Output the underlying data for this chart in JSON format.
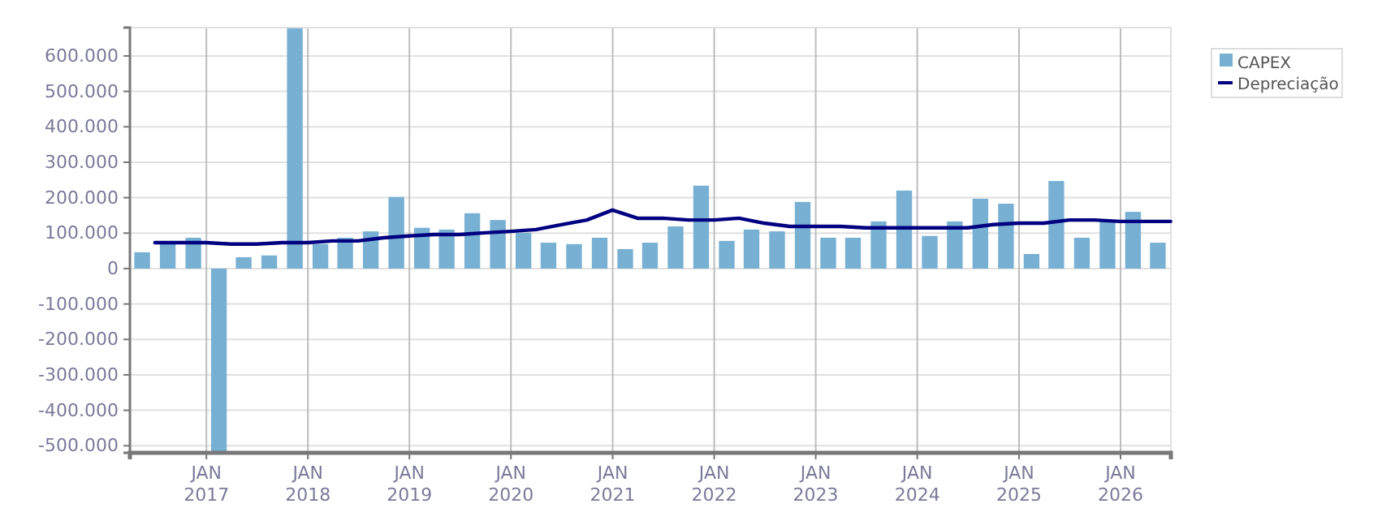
{
  "chart_data": {
    "type": "bar",
    "x": [
      "2016-05-15",
      "2016-08-15",
      "2016-11-15",
      "2017-02-15",
      "2017-05-15",
      "2017-08-15",
      "2017-11-15",
      "2018-02-15",
      "2018-05-15",
      "2018-08-15",
      "2018-11-15",
      "2019-02-15",
      "2019-05-15",
      "2019-08-15",
      "2019-11-15",
      "2020-02-15",
      "2020-05-15",
      "2020-08-15",
      "2020-11-15",
      "2021-02-15",
      "2021-05-15",
      "2021-08-15",
      "2021-11-15",
      "2022-02-15",
      "2022-05-15",
      "2022-08-15",
      "2022-11-15",
      "2023-02-15",
      "2023-05-15",
      "2023-08-15",
      "2023-11-15",
      "2024-02-15",
      "2024-05-15",
      "2024-08-15",
      "2024-11-15",
      "2025-02-15",
      "2025-05-15",
      "2025-08-15",
      "2025-11-15",
      "2026-02-15",
      "2026-05-15"
    ],
    "series": [
      {
        "name": "CAPEX",
        "color": "#78b0d3",
        "values": [
          46000,
          73000,
          87000,
          -518000,
          32000,
          37000,
          678000,
          69000,
          87000,
          105000,
          202000,
          115000,
          110000,
          156000,
          137000,
          101000,
          73000,
          69000,
          87000,
          55000,
          73000,
          119000,
          234000,
          78000,
          110000,
          105000,
          188000,
          87000,
          87000,
          133000,
          220000,
          92000,
          133000,
          197000,
          183000,
          41000,
          247000,
          87000,
          133000,
          160000,
          73000
        ]
      },
      {
        "name": "Depreciação",
        "type": "line",
        "color": "#000080",
        "x": [
          "2016-06-30",
          "2016-09-30",
          "2016-12-31",
          "2017-03-31",
          "2017-06-30",
          "2017-09-30",
          "2017-12-31",
          "2018-03-31",
          "2018-06-30",
          "2018-09-30",
          "2018-12-31",
          "2019-03-31",
          "2019-06-30",
          "2019-09-30",
          "2019-12-31",
          "2020-03-31",
          "2020-06-30",
          "2020-09-30",
          "2020-12-31",
          "2021-03-31",
          "2021-06-30",
          "2021-09-30",
          "2021-12-31",
          "2022-03-31",
          "2022-06-30",
          "2022-09-30",
          "2022-12-31",
          "2023-03-31",
          "2023-06-30",
          "2023-09-30",
          "2023-12-31",
          "2024-03-31",
          "2024-06-30",
          "2024-09-30",
          "2024-12-31",
          "2025-03-31",
          "2025-06-30",
          "2025-09-30",
          "2025-12-31",
          "2026-03-31",
          "2026-06-30"
        ],
        "values": [
          73000,
          73000,
          73000,
          69000,
          69000,
          73000,
          73000,
          78000,
          78000,
          87000,
          92000,
          96000,
          96000,
          101000,
          105000,
          110000,
          124000,
          137000,
          165000,
          142000,
          142000,
          137000,
          137000,
          142000,
          128000,
          119000,
          119000,
          119000,
          115000,
          115000,
          115000,
          115000,
          115000,
          124000,
          128000,
          128000,
          137000,
          137000,
          133000,
          133000,
          133000
        ]
      }
    ],
    "xlim": [
      "2016-04-01",
      "2026-07-01"
    ],
    "xticks": [
      {
        "value": "2017-01-01",
        "label": "JAN 2017"
      },
      {
        "value": "2018-01-01",
        "label": "JAN 2018"
      },
      {
        "value": "2019-01-01",
        "label": "JAN 2019"
      },
      {
        "value": "2020-01-01",
        "label": "JAN 2020"
      },
      {
        "value": "2021-01-01",
        "label": "JAN 2021"
      },
      {
        "value": "2022-01-01",
        "label": "JAN 2022"
      },
      {
        "value": "2023-01-01",
        "label": "JAN 2023"
      },
      {
        "value": "2024-01-01",
        "label": "JAN 2024"
      },
      {
        "value": "2025-01-01",
        "label": "JAN 2025"
      },
      {
        "value": "2026-01-01",
        "label": "JAN 2026"
      }
    ],
    "ylim": [
      -520000,
      680000
    ],
    "yticks": [
      {
        "value": -500000,
        "label": "-500.000"
      },
      {
        "value": -400000,
        "label": "-400.000"
      },
      {
        "value": -300000,
        "label": "-300.000"
      },
      {
        "value": -200000,
        "label": "-200.000"
      },
      {
        "value": -100000,
        "label": "-100.000"
      },
      {
        "value": 0,
        "label": "0"
      },
      {
        "value": 100000,
        "label": "100.000"
      },
      {
        "value": 200000,
        "label": "200.000"
      },
      {
        "value": 300000,
        "label": "300.000"
      },
      {
        "value": 400000,
        "label": "400.000"
      },
      {
        "value": 500000,
        "label": "500.000"
      },
      {
        "value": 600000,
        "label": "600.000"
      }
    ],
    "grid": true,
    "legend": "top right"
  }
}
